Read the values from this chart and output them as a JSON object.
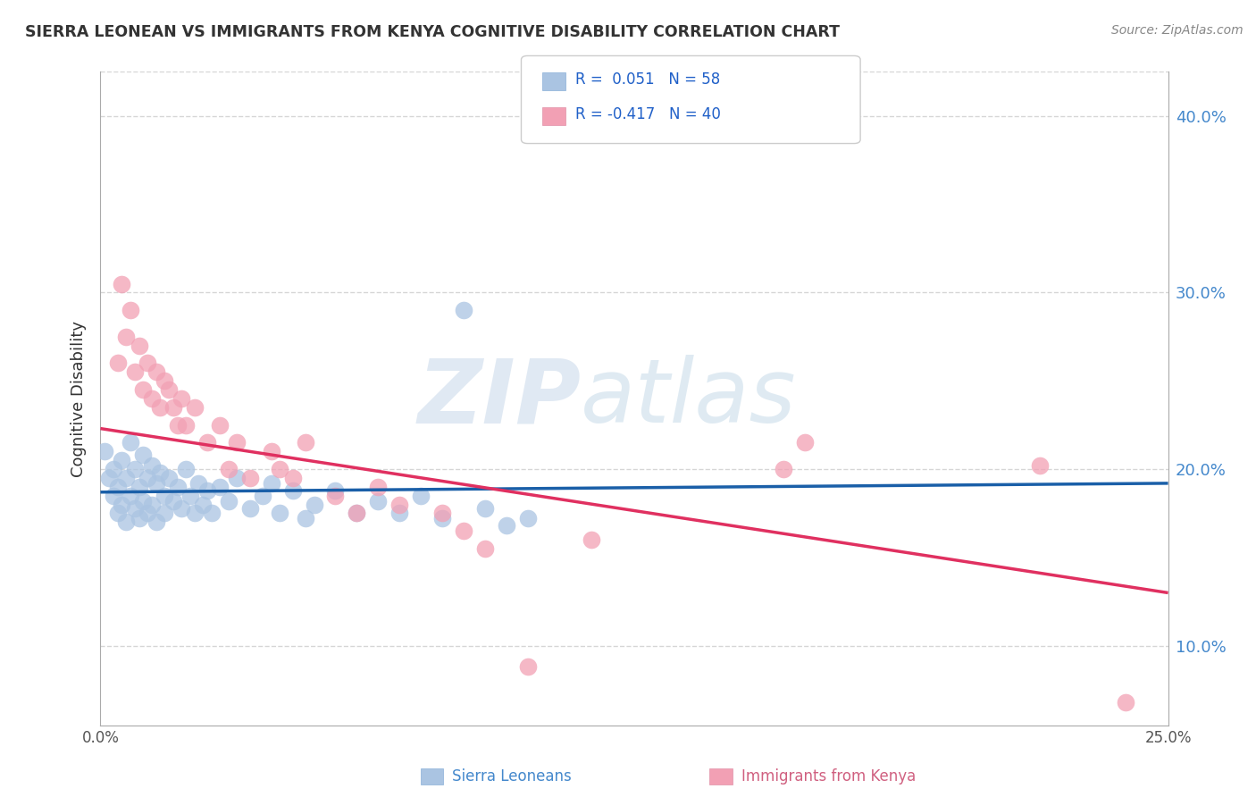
{
  "title": "SIERRA LEONEAN VS IMMIGRANTS FROM KENYA COGNITIVE DISABILITY CORRELATION CHART",
  "source": "Source: ZipAtlas.com",
  "ylabel": "Cognitive Disability",
  "watermark": "ZIPatlas",
  "xlim": [
    0.0,
    0.25
  ],
  "ylim": [
    0.055,
    0.425
  ],
  "yticks": [
    0.1,
    0.2,
    0.3,
    0.4
  ],
  "ytick_labels": [
    "10.0%",
    "20.0%",
    "30.0%",
    "40.0%"
  ],
  "right_ytick_labels": [
    "10.0%",
    "20.0%",
    "30.0%",
    "40.0%"
  ],
  "sierra_leone_color": "#aac4e2",
  "kenya_color": "#f2a0b4",
  "sierra_leone_line_color": "#1a5fa8",
  "kenya_line_color": "#e03060",
  "background_color": "#ffffff",
  "grid_color": "#cccccc",
  "sierra_leone_scatter": [
    [
      0.001,
      0.21
    ],
    [
      0.002,
      0.195
    ],
    [
      0.003,
      0.185
    ],
    [
      0.003,
      0.2
    ],
    [
      0.004,
      0.19
    ],
    [
      0.004,
      0.175
    ],
    [
      0.005,
      0.205
    ],
    [
      0.005,
      0.18
    ],
    [
      0.006,
      0.195
    ],
    [
      0.006,
      0.17
    ],
    [
      0.007,
      0.215
    ],
    [
      0.007,
      0.185
    ],
    [
      0.008,
      0.2
    ],
    [
      0.008,
      0.178
    ],
    [
      0.009,
      0.19
    ],
    [
      0.009,
      0.172
    ],
    [
      0.01,
      0.208
    ],
    [
      0.01,
      0.182
    ],
    [
      0.011,
      0.195
    ],
    [
      0.011,
      0.175
    ],
    [
      0.012,
      0.202
    ],
    [
      0.012,
      0.18
    ],
    [
      0.013,
      0.192
    ],
    [
      0.013,
      0.17
    ],
    [
      0.014,
      0.198
    ],
    [
      0.015,
      0.185
    ],
    [
      0.015,
      0.175
    ],
    [
      0.016,
      0.195
    ],
    [
      0.017,
      0.182
    ],
    [
      0.018,
      0.19
    ],
    [
      0.019,
      0.178
    ],
    [
      0.02,
      0.2
    ],
    [
      0.021,
      0.185
    ],
    [
      0.022,
      0.175
    ],
    [
      0.023,
      0.192
    ],
    [
      0.024,
      0.18
    ],
    [
      0.025,
      0.188
    ],
    [
      0.026,
      0.175
    ],
    [
      0.028,
      0.19
    ],
    [
      0.03,
      0.182
    ],
    [
      0.032,
      0.195
    ],
    [
      0.035,
      0.178
    ],
    [
      0.038,
      0.185
    ],
    [
      0.04,
      0.192
    ],
    [
      0.042,
      0.175
    ],
    [
      0.045,
      0.188
    ],
    [
      0.048,
      0.172
    ],
    [
      0.05,
      0.18
    ],
    [
      0.055,
      0.188
    ],
    [
      0.06,
      0.175
    ],
    [
      0.065,
      0.182
    ],
    [
      0.07,
      0.175
    ],
    [
      0.075,
      0.185
    ],
    [
      0.08,
      0.172
    ],
    [
      0.085,
      0.29
    ],
    [
      0.09,
      0.178
    ],
    [
      0.095,
      0.168
    ],
    [
      0.1,
      0.172
    ]
  ],
  "kenya_scatter": [
    [
      0.004,
      0.26
    ],
    [
      0.005,
      0.305
    ],
    [
      0.006,
      0.275
    ],
    [
      0.007,
      0.29
    ],
    [
      0.008,
      0.255
    ],
    [
      0.009,
      0.27
    ],
    [
      0.01,
      0.245
    ],
    [
      0.011,
      0.26
    ],
    [
      0.012,
      0.24
    ],
    [
      0.013,
      0.255
    ],
    [
      0.014,
      0.235
    ],
    [
      0.015,
      0.25
    ],
    [
      0.016,
      0.245
    ],
    [
      0.017,
      0.235
    ],
    [
      0.018,
      0.225
    ],
    [
      0.019,
      0.24
    ],
    [
      0.02,
      0.225
    ],
    [
      0.022,
      0.235
    ],
    [
      0.025,
      0.215
    ],
    [
      0.028,
      0.225
    ],
    [
      0.03,
      0.2
    ],
    [
      0.032,
      0.215
    ],
    [
      0.035,
      0.195
    ],
    [
      0.04,
      0.21
    ],
    [
      0.042,
      0.2
    ],
    [
      0.045,
      0.195
    ],
    [
      0.048,
      0.215
    ],
    [
      0.055,
      0.185
    ],
    [
      0.06,
      0.175
    ],
    [
      0.065,
      0.19
    ],
    [
      0.07,
      0.18
    ],
    [
      0.08,
      0.175
    ],
    [
      0.085,
      0.165
    ],
    [
      0.09,
      0.155
    ],
    [
      0.1,
      0.088
    ],
    [
      0.115,
      0.16
    ],
    [
      0.16,
      0.2
    ],
    [
      0.165,
      0.215
    ],
    [
      0.22,
      0.202
    ],
    [
      0.24,
      0.068
    ]
  ],
  "sl_line_x0": 0.0,
  "sl_line_y0": 0.187,
  "sl_line_x1": 0.25,
  "sl_line_y1": 0.192,
  "ke_line_x0": 0.0,
  "ke_line_y0": 0.223,
  "ke_line_x1": 0.25,
  "ke_line_y1": 0.13
}
